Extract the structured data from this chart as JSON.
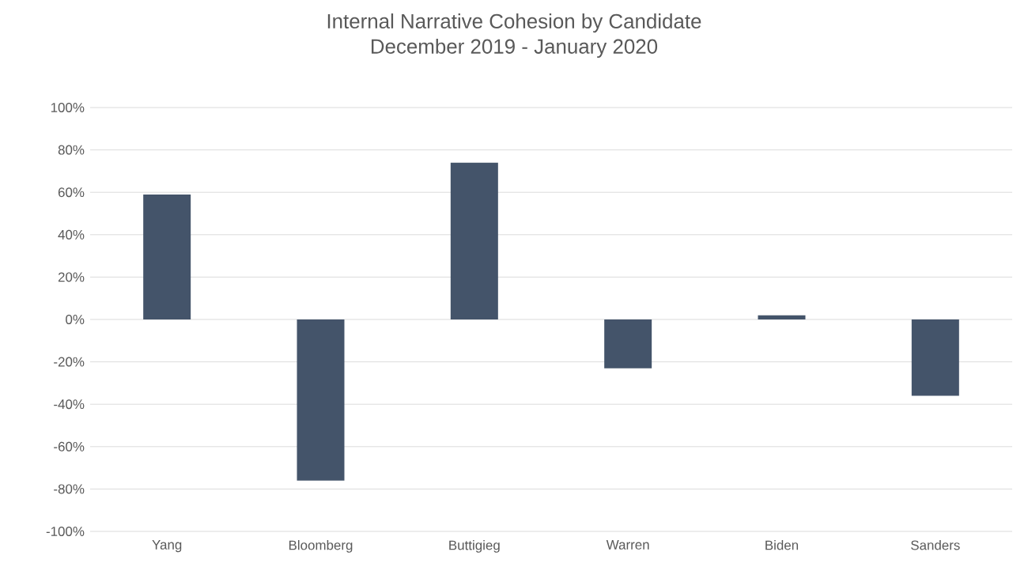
{
  "chart_data": {
    "type": "bar",
    "title": "Internal Narrative Cohesion by Candidate",
    "subtitle": "December 2019 - January 2020",
    "categories": [
      "Yang",
      "Bloomberg",
      "Buttigieg",
      "Warren",
      "Biden",
      "Sanders"
    ],
    "values": [
      59,
      -76,
      74,
      -23,
      2,
      -36
    ],
    "color": "#44546a",
    "ylim": [
      -100,
      100
    ],
    "yticks": [
      {
        "value": -100,
        "label": "-100%"
      },
      {
        "value": -80,
        "label": "-80%"
      },
      {
        "value": -60,
        "label": "-60%"
      },
      {
        "value": -40,
        "label": "-40%"
      },
      {
        "value": -20,
        "label": "-20%"
      },
      {
        "value": 0,
        "label": "0%"
      },
      {
        "value": 20,
        "label": "20%"
      },
      {
        "value": 40,
        "label": "40%"
      },
      {
        "value": 60,
        "label": "60%"
      },
      {
        "value": 80,
        "label": "80%"
      },
      {
        "value": 100,
        "label": "100%"
      }
    ],
    "grid": "y"
  }
}
